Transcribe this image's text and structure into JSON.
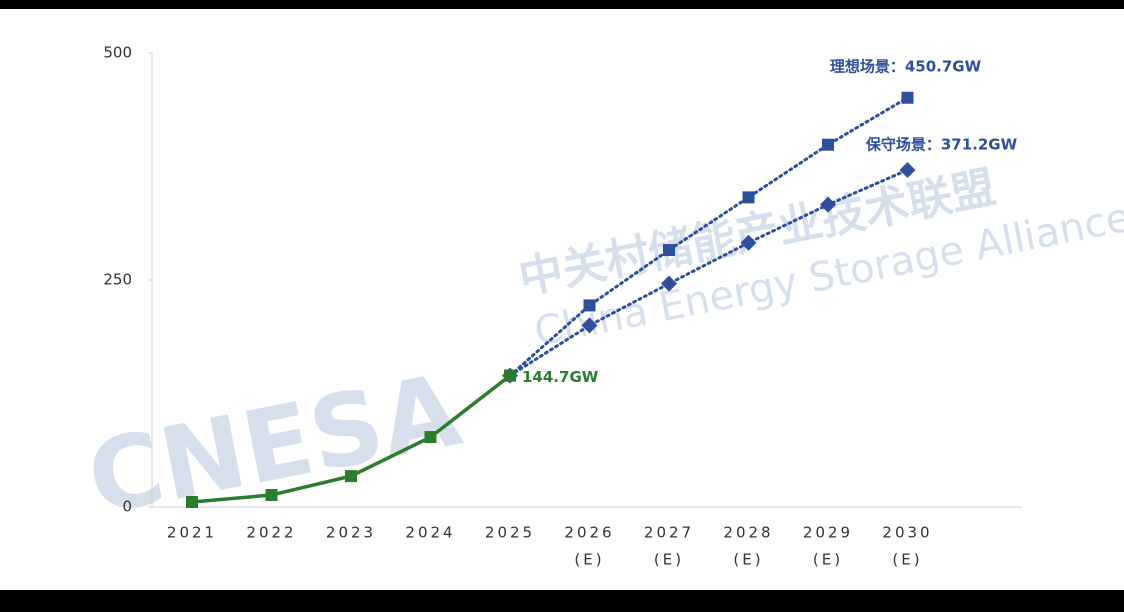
{
  "chart_data": {
    "type": "line",
    "categories": [
      [
        "2021"
      ],
      [
        "2022"
      ],
      [
        "2023"
      ],
      [
        "2024"
      ],
      [
        "2025"
      ],
      [
        "2026",
        "(E)"
      ],
      [
        "2027",
        "(E)"
      ],
      [
        "2028",
        "(E)"
      ],
      [
        "2029",
        "(E)"
      ],
      [
        "2030",
        "(E)"
      ]
    ],
    "series": [
      {
        "color": "#2a7d2e",
        "marker": "square",
        "dash": false,
        "values": [
          5.5,
          13.2,
          34,
          77,
          144.7,
          null,
          null,
          null,
          null,
          null
        ],
        "value_labels": [
          null,
          null,
          null,
          null,
          "144.7GW",
          null,
          null,
          null,
          null,
          null
        ]
      },
      {
        "name": "理想场景",
        "color": "#2e4f9c",
        "marker": "square",
        "dash": true,
        "values": [
          null,
          null,
          null,
          null,
          144.7,
          222,
          283,
          341,
          399,
          450.7
        ],
        "value_labels": [
          null,
          null,
          null,
          null,
          null,
          null,
          null,
          null,
          null,
          "理想场景：450.7GW"
        ]
      },
      {
        "name": "保守场景",
        "color": "#2e4f9c",
        "marker": "diamond",
        "dash": true,
        "values": [
          null,
          null,
          null,
          null,
          144.7,
          200,
          246,
          291,
          333,
          371.2
        ],
        "value_labels": [
          null,
          null,
          null,
          null,
          null,
          null,
          null,
          null,
          null,
          "保守场景：371.2GW"
        ]
      }
    ],
    "ylim": [
      0,
      500
    ],
    "yticks": [
      0,
      250,
      500
    ],
    "grid": false,
    "watermark": {
      "logo": "CNESA",
      "name_cn": "中关村储能产业技术联盟",
      "name_en": "China Energy Storage Alliance"
    }
  }
}
